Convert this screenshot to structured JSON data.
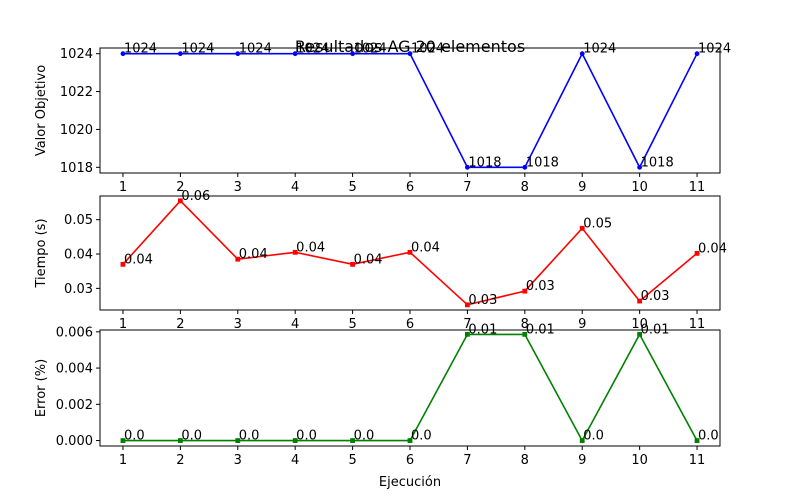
{
  "chart_data": {
    "title": "Resultados AG 20 elementos",
    "xlabel": "Ejecución",
    "x": [
      1,
      2,
      3,
      4,
      5,
      6,
      7,
      8,
      9,
      10,
      11
    ],
    "xtick_labels": [
      "1",
      "2",
      "3",
      "4",
      "5",
      "6",
      "7",
      "8",
      "9",
      "10",
      "11"
    ],
    "subplots": [
      {
        "type": "line",
        "name": "valor-objetivo",
        "ylabel": "Valor Objetivo",
        "color": "#0000ff",
        "marker": "circle",
        "values": [
          1024,
          1024,
          1024,
          1024,
          1024,
          1024,
          1018,
          1018,
          1024,
          1018,
          1024
        ],
        "labels": [
          "1024",
          "1024",
          "1024",
          "1024",
          "1024",
          "1024",
          "1018",
          "1018",
          "1024",
          "1018",
          "1024"
        ],
        "ylim": [
          1017.7,
          1024.3
        ],
        "yticks": [
          1018,
          1020,
          1022,
          1024
        ],
        "ytick_labels": [
          "1018",
          "1020",
          "1022",
          "1024"
        ]
      },
      {
        "type": "line",
        "name": "tiempo",
        "ylabel": "Tiempo (s)",
        "color": "#ff0000",
        "marker": "square",
        "values": [
          0.037,
          0.0555,
          0.0385,
          0.0405,
          0.037,
          0.0405,
          0.0252,
          0.0292,
          0.0475,
          0.0263,
          0.0402
        ],
        "labels": [
          "0.04",
          "0.06",
          "0.04",
          "0.04",
          "0.04",
          "0.04",
          "0.03",
          "0.03",
          "0.05",
          "0.03",
          "0.04"
        ],
        "ylim": [
          0.0237,
          0.0569
        ],
        "yticks": [
          0.03,
          0.04,
          0.05
        ],
        "ytick_labels": [
          "0.03",
          "0.04",
          "0.05"
        ]
      },
      {
        "type": "line",
        "name": "error",
        "ylabel": "Error (%)",
        "color": "#008000",
        "marker": "square",
        "values": [
          0,
          0,
          0,
          0,
          0,
          0,
          0.00586,
          0.00586,
          0,
          0.00586,
          0
        ],
        "labels": [
          "0.0",
          "0.0",
          "0.0",
          "0.0",
          "0.0",
          "0.0",
          "0.01",
          "0.01",
          "0.0",
          "0.01",
          "0.0"
        ],
        "ylim": [
          -0.0003,
          0.0061
        ],
        "yticks": [
          0.0,
          0.002,
          0.004,
          0.006
        ],
        "ytick_labels": [
          "0.000",
          "0.002",
          "0.004",
          "0.006"
        ]
      }
    ]
  }
}
